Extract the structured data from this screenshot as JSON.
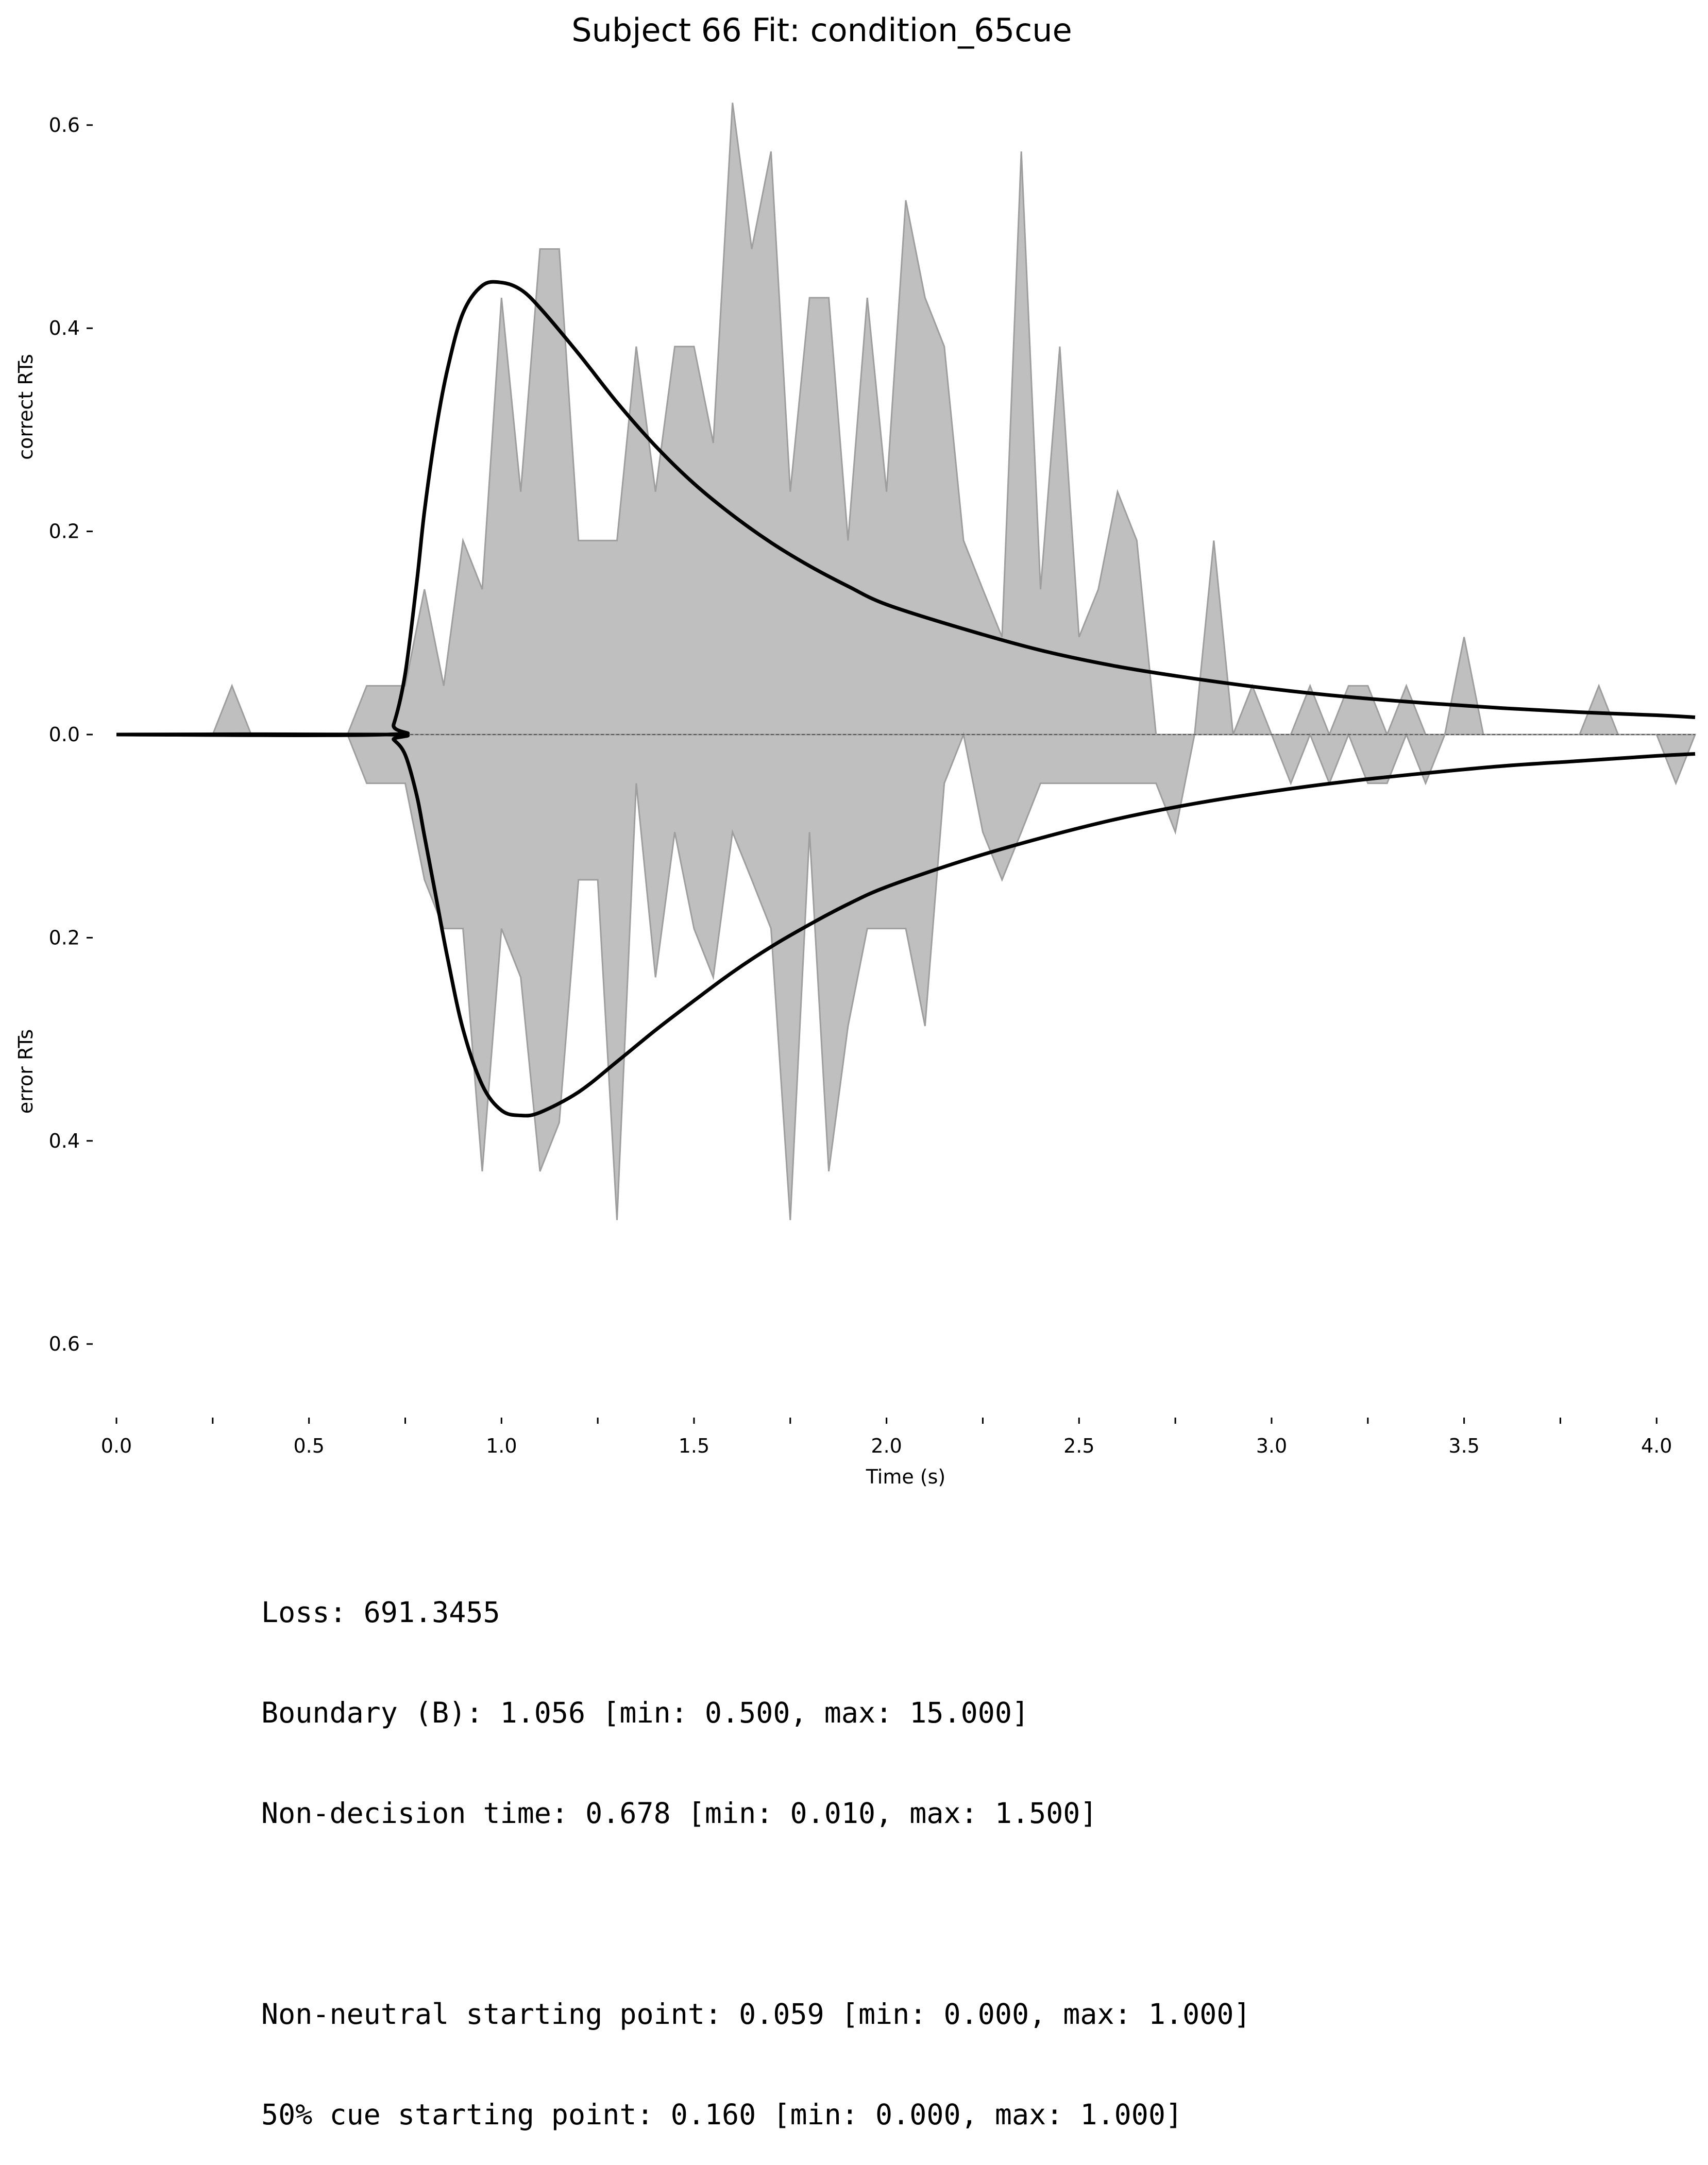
{
  "chart_data": {
    "type": "area",
    "title": "Subject 66 Fit: condition_65cue",
    "xlabel": "Time (s)",
    "ylabel_top": "correct RTs",
    "ylabel_bottom": "error RTs",
    "xlim": [
      0,
      4.1
    ],
    "ylim": [
      -0.67,
      0.67
    ],
    "x_ticks": [
      "0.0",
      "0.5",
      "1.0",
      "1.5",
      "2.0",
      "2.5",
      "3.0",
      "3.5",
      "4.0"
    ],
    "y_ticks": [
      "0.6",
      "0.4",
      "0.2",
      "0.0",
      "0.2",
      "0.4",
      "0.6"
    ],
    "grid": false,
    "histogram_correct": {
      "x": [
        0,
        0.25,
        0.3,
        0.35,
        0.6,
        0.65,
        0.75,
        0.8,
        0.85,
        0.9,
        0.95,
        1.0,
        1.05,
        1.1,
        1.15,
        1.2,
        1.25,
        1.3,
        1.35,
        1.4,
        1.45,
        1.5,
        1.55,
        1.6,
        1.65,
        1.7,
        1.75,
        1.8,
        1.85,
        1.9,
        1.95,
        2.0,
        2.05,
        2.1,
        2.15,
        2.2,
        2.25,
        2.3,
        2.35,
        2.4,
        2.45,
        2.5,
        2.55,
        2.6,
        2.65,
        2.7,
        2.75,
        2.8,
        2.85,
        2.9,
        2.95,
        3.0,
        3.05,
        3.1,
        3.15,
        3.2,
        3.25,
        3.3,
        3.35,
        3.4,
        3.45,
        3.5,
        3.55,
        3.6,
        3.8,
        3.85,
        3.9,
        4.1
      ],
      "values": [
        0,
        0,
        0.048,
        0,
        0,
        0.048,
        0.048,
        0.143,
        0.048,
        0.191,
        0.143,
        0.43,
        0.239,
        0.478,
        0.478,
        0.191,
        0.191,
        0.191,
        0.382,
        0.239,
        0.382,
        0.382,
        0.287,
        0.622,
        0.478,
        0.574,
        0.239,
        0.43,
        0.43,
        0.191,
        0.43,
        0.239,
        0.526,
        0.43,
        0.382,
        0.191,
        0.143,
        0.096,
        0.574,
        0.143,
        0.382,
        0.096,
        0.143,
        0.239,
        0.191,
        0,
        0,
        0,
        0.191,
        0,
        0.048,
        0,
        0,
        0.048,
        0,
        0.048,
        0.048,
        0,
        0.048,
        0,
        0,
        0.096,
        0,
        0,
        0,
        0.048,
        0,
        0
      ]
    },
    "histogram_error": {
      "x": [
        0,
        0.6,
        0.65,
        0.75,
        0.8,
        0.85,
        0.9,
        0.95,
        1.0,
        1.05,
        1.1,
        1.15,
        1.2,
        1.25,
        1.3,
        1.35,
        1.4,
        1.45,
        1.5,
        1.55,
        1.6,
        1.65,
        1.7,
        1.75,
        1.8,
        1.85,
        1.9,
        1.95,
        2.0,
        2.05,
        2.1,
        2.15,
        2.2,
        2.25,
        2.3,
        2.35,
        2.4,
        2.45,
        2.5,
        2.55,
        2.6,
        2.65,
        2.7,
        2.75,
        2.8,
        3.0,
        3.05,
        3.1,
        3.15,
        3.2,
        3.25,
        3.3,
        3.35,
        3.4,
        3.45,
        3.5,
        4.0,
        4.05,
        4.1
      ],
      "values": [
        0,
        0,
        0.048,
        0.048,
        0.143,
        0.191,
        0.191,
        0.43,
        0.191,
        0.239,
        0.43,
        0.382,
        0.143,
        0.143,
        0.478,
        0.048,
        0.239,
        0.096,
        0.191,
        0.239,
        0.096,
        0.143,
        0.191,
        0.478,
        0.096,
        0.43,
        0.287,
        0.191,
        0.191,
        0.191,
        0.287,
        0.048,
        0,
        0.096,
        0.143,
        0.096,
        0.048,
        0.048,
        0.048,
        0.048,
        0.048,
        0.048,
        0.048,
        0.096,
        0,
        0,
        0.048,
        0,
        0.048,
        0,
        0.048,
        0.048,
        0,
        0.048,
        0,
        0,
        0,
        0.048,
        0
      ]
    },
    "model_correct": {
      "x": [
        0,
        0.7,
        0.72,
        0.75,
        0.78,
        0.8,
        0.83,
        0.86,
        0.9,
        0.95,
        1.0,
        1.05,
        1.1,
        1.2,
        1.3,
        1.4,
        1.5,
        1.6,
        1.7,
        1.8,
        1.9,
        2.0,
        2.2,
        2.4,
        2.6,
        2.8,
        3.0,
        3.2,
        3.4,
        3.6,
        3.8,
        4.0,
        4.1
      ],
      "values": [
        0,
        0,
        0.01,
        0.06,
        0.15,
        0.22,
        0.3,
        0.36,
        0.415,
        0.442,
        0.445,
        0.438,
        0.42,
        0.375,
        0.327,
        0.284,
        0.247,
        0.216,
        0.189,
        0.166,
        0.146,
        0.128,
        0.104,
        0.083,
        0.067,
        0.055,
        0.045,
        0.037,
        0.031,
        0.026,
        0.022,
        0.019,
        0.017
      ]
    },
    "model_error": {
      "x": [
        0,
        0.7,
        0.72,
        0.75,
        0.78,
        0.8,
        0.83,
        0.86,
        0.9,
        0.95,
        1.0,
        1.05,
        1.1,
        1.2,
        1.3,
        1.4,
        1.5,
        1.6,
        1.7,
        1.8,
        1.9,
        2.0,
        2.2,
        2.4,
        2.6,
        2.8,
        3.0,
        3.2,
        3.4,
        3.6,
        3.8,
        4.0,
        4.1
      ],
      "values": [
        0,
        0,
        0.005,
        0.02,
        0.06,
        0.1,
        0.16,
        0.22,
        0.29,
        0.345,
        0.37,
        0.375,
        0.372,
        0.352,
        0.322,
        0.291,
        0.262,
        0.234,
        0.209,
        0.187,
        0.167,
        0.15,
        0.124,
        0.102,
        0.083,
        0.068,
        0.056,
        0.046,
        0.038,
        0.031,
        0.026,
        0.021,
        0.019
      ]
    },
    "colors": {
      "histogram_fill": "#bfbfbf",
      "histogram_edge": "#9e9e9e",
      "model_line": "#000000",
      "zero_line": "#555555"
    }
  },
  "stats": {
    "loss": "Loss: 691.3455",
    "boundary": "Boundary (B): 1.056 [min: 0.500, max: 15.000]",
    "non_decision": "Non-decision time: 0.678 [min: 0.010, max: 1.500]",
    "non_neutral": "Non-neutral starting point: 0.059 [min: 0.000, max: 1.000]",
    "cue50": "50% cue starting point: 0.160 [min: 0.000, max: 1.000]"
  }
}
